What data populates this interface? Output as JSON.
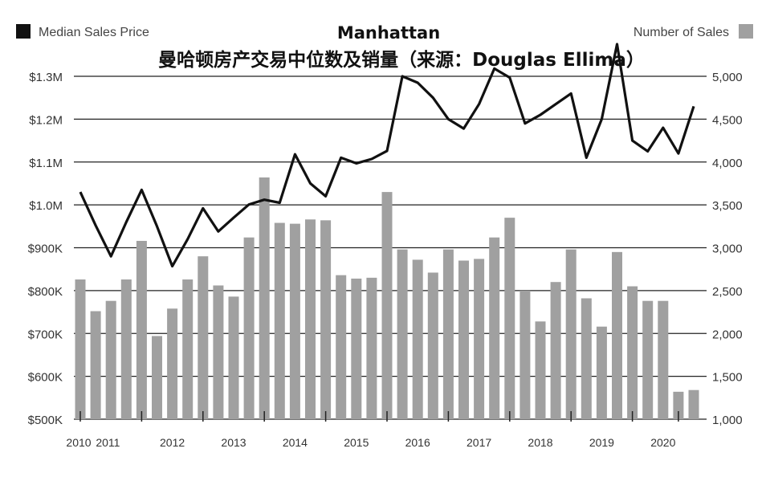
{
  "chart_data": {
    "type": "bar+line",
    "title": "Manhattan",
    "subtitle": "曼哈顿房产交易中位数及销量（来源：Douglas Ellima）",
    "legend": {
      "price_label": "Median Sales Price",
      "sales_label": "Number of Sales",
      "price_color": "#111111",
      "sales_color": "#a0a0a0"
    },
    "left_axis": {
      "ticks": [
        500000,
        600000,
        700000,
        800000,
        900000,
        1000000,
        1100000,
        1200000,
        1300000
      ],
      "tick_labels": [
        "$500K",
        "$600K",
        "$700K",
        "$800K",
        "$900K",
        "$1.0M",
        "$1.1M",
        "$1.2M",
        "$1.3M"
      ],
      "ylim": [
        500000,
        1300000
      ]
    },
    "right_axis": {
      "ticks": [
        1000,
        1500,
        2000,
        2500,
        3000,
        3500,
        4000,
        4500,
        5000
      ],
      "tick_labels": [
        "1,000",
        "1,500",
        "2,000",
        "2,500",
        "3,000",
        "3,500",
        "4,000",
        "4,500",
        "5,000"
      ],
      "ylim": [
        1000,
        5000
      ]
    },
    "x_tick_labels": [
      {
        "label": "2010",
        "index": 0
      },
      {
        "label": "2011",
        "index": 2
      },
      {
        "label": "2012",
        "index": 6
      },
      {
        "label": "2013",
        "index": 10
      },
      {
        "label": "2014",
        "index": 14
      },
      {
        "label": "2015",
        "index": 18
      },
      {
        "label": "2016",
        "index": 22
      },
      {
        "label": "2017",
        "index": 26
      },
      {
        "label": "2018",
        "index": 30
      },
      {
        "label": "2019",
        "index": 34
      },
      {
        "label": "2020",
        "index": 38
      }
    ],
    "x_tick_marks": [
      0,
      4,
      8,
      12,
      16,
      20,
      24,
      28,
      32,
      36,
      39
    ],
    "grid": true,
    "series": [
      {
        "name": "Number of Sales",
        "kind": "bar",
        "axis": "right",
        "values": [
          2630,
          2260,
          2380,
          2630,
          3080,
          1970,
          2290,
          2630,
          2900,
          2560,
          2430,
          3120,
          3820,
          3290,
          3280,
          3330,
          3320,
          2680,
          2640,
          2650,
          3650,
          2980,
          2860,
          2710,
          2980,
          2850,
          2870,
          3120,
          3350,
          2500,
          2140,
          2600,
          2980,
          2410,
          2080,
          2950,
          2550,
          2380,
          2380,
          1320,
          1340
        ]
      },
      {
        "name": "Median Sales Price",
        "kind": "line",
        "axis": "left",
        "values": [
          1030000,
          952000,
          880000,
          960000,
          1035000,
          950000,
          857000,
          920000,
          992000,
          938000,
          970000,
          1001000,
          1012000,
          1005000,
          1118000,
          1050000,
          1020000,
          1110000,
          1097000,
          1107000,
          1126000,
          1300000,
          1285000,
          1250000,
          1200000,
          1178000,
          1235000,
          1318000,
          1297000,
          1190000,
          1210000,
          1235000,
          1260000,
          1110000,
          1200000,
          1375000,
          1150000,
          1125000,
          1180000,
          1120000,
          1230000
        ]
      }
    ]
  }
}
